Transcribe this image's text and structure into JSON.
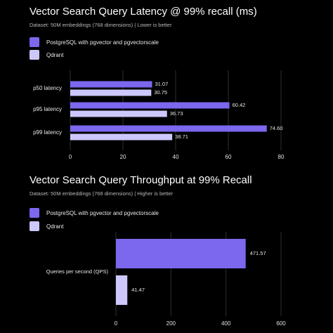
{
  "colors": {
    "postgres": "#7b68ee",
    "qdrant": "#cdc8fb",
    "grid": "#2e2e2e",
    "background": "#000000"
  },
  "chart_data": [
    {
      "type": "bar",
      "orientation": "horizontal",
      "title": "Vector Search Query Latency @ 99% recall (ms)",
      "subtitle": "Dataset: 50M embeddings (768 dimensions) | Lower is better",
      "categories": [
        "p50 latency",
        "p95 latency",
        "p99 latency"
      ],
      "series": [
        {
          "name": "PostgreSQL with pgvector and pgvectorscale",
          "values": [
            31.07,
            60.42,
            74.6
          ],
          "labels": [
            "31.07",
            "60.42",
            "74.60"
          ]
        },
        {
          "name": "Qdrant",
          "values": [
            30.75,
            36.73,
            38.71
          ],
          "labels": [
            "30.75",
            "36.73",
            "38.71"
          ]
        }
      ],
      "xlim": [
        0,
        80
      ],
      "xticks": [
        "0",
        "20",
        "40",
        "60",
        "80"
      ],
      "grid": true,
      "legend": "top-left"
    },
    {
      "type": "bar",
      "orientation": "horizontal",
      "title": "Vector Search Query Throughput at 99% Recall",
      "subtitle": "Dataset: 50M embeddings (768 dimensions) | Higher is better",
      "categories": [
        "Queries per second (QPS)"
      ],
      "series": [
        {
          "name": "PostgreSQL with pgvector and pgvectorscale",
          "values": [
            471.57
          ],
          "labels": [
            "471.57"
          ]
        },
        {
          "name": "Qdrant",
          "values": [
            41.47
          ],
          "labels": [
            "41.47"
          ]
        }
      ],
      "xlim": [
        0,
        600
      ],
      "xticks": [
        "0",
        "200",
        "400",
        "600"
      ],
      "grid": true,
      "legend": "top-left"
    }
  ]
}
